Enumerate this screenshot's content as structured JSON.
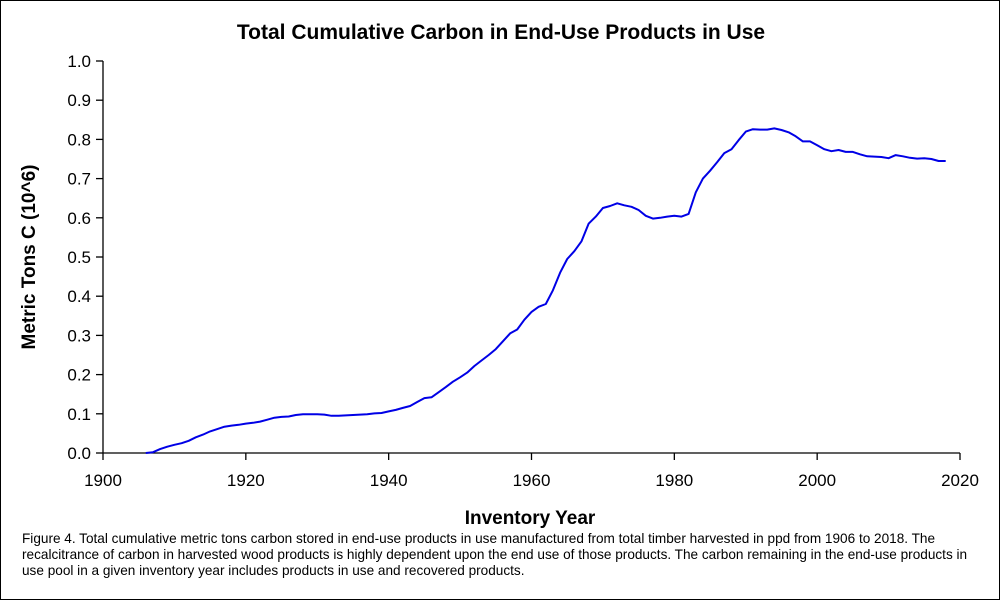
{
  "chart_data": {
    "type": "line",
    "title": "Total Cumulative Carbon in End-Use Products in Use",
    "xlabel": "Inventory Year",
    "ylabel": "Metric Tons C (10^6)",
    "xlim": [
      1900,
      2020
    ],
    "ylim": [
      0.0,
      1.0
    ],
    "xticks": [
      1900,
      1920,
      1940,
      1960,
      1980,
      2000,
      2020
    ],
    "yticks": [
      "0.0",
      "0.1",
      "0.2",
      "0.3",
      "0.4",
      "0.5",
      "0.6",
      "0.7",
      "0.8",
      "0.9",
      "1.0"
    ],
    "grid": false,
    "legend": "none",
    "series": [
      {
        "color": "#0000e6",
        "x": [
          1906,
          1907,
          1908,
          1909,
          1910,
          1911,
          1912,
          1913,
          1914,
          1915,
          1916,
          1917,
          1918,
          1919,
          1920,
          1921,
          1922,
          1923,
          1924,
          1925,
          1926,
          1927,
          1928,
          1929,
          1930,
          1931,
          1932,
          1933,
          1934,
          1935,
          1936,
          1937,
          1938,
          1939,
          1940,
          1941,
          1942,
          1943,
          1944,
          1945,
          1946,
          1947,
          1948,
          1949,
          1950,
          1951,
          1952,
          1953,
          1954,
          1955,
          1956,
          1957,
          1958,
          1959,
          1960,
          1961,
          1962,
          1963,
          1964,
          1965,
          1966,
          1967,
          1968,
          1969,
          1970,
          1971,
          1972,
          1973,
          1974,
          1975,
          1976,
          1977,
          1978,
          1979,
          1980,
          1981,
          1982,
          1983,
          1984,
          1985,
          1986,
          1987,
          1988,
          1989,
          1990,
          1991,
          1992,
          1993,
          1994,
          1995,
          1996,
          1997,
          1998,
          1999,
          2000,
          2001,
          2002,
          2003,
          2004,
          2005,
          2006,
          2007,
          2008,
          2009,
          2010,
          2011,
          2012,
          2013,
          2014,
          2015,
          2016,
          2017,
          2018
        ],
        "y": [
          0.0,
          0.002,
          0.01,
          0.016,
          0.021,
          0.025,
          0.031,
          0.04,
          0.047,
          0.055,
          0.061,
          0.067,
          0.07,
          0.072,
          0.075,
          0.077,
          0.08,
          0.085,
          0.09,
          0.092,
          0.093,
          0.097,
          0.099,
          0.099,
          0.099,
          0.098,
          0.095,
          0.095,
          0.096,
          0.097,
          0.098,
          0.099,
          0.101,
          0.102,
          0.106,
          0.11,
          0.115,
          0.12,
          0.13,
          0.14,
          0.142,
          0.155,
          0.168,
          0.182,
          0.193,
          0.205,
          0.222,
          0.236,
          0.25,
          0.265,
          0.285,
          0.305,
          0.315,
          0.34,
          0.36,
          0.373,
          0.38,
          0.415,
          0.46,
          0.495,
          0.515,
          0.54,
          0.585,
          0.603,
          0.625,
          0.63,
          0.637,
          0.632,
          0.628,
          0.62,
          0.605,
          0.598,
          0.6,
          0.603,
          0.605,
          0.603,
          0.61,
          0.665,
          0.7,
          0.72,
          0.742,
          0.765,
          0.775,
          0.798,
          0.82,
          0.826,
          0.825,
          0.825,
          0.828,
          0.824,
          0.818,
          0.808,
          0.795,
          0.795,
          0.785,
          0.775,
          0.77,
          0.773,
          0.768,
          0.768,
          0.762,
          0.757,
          0.756,
          0.755,
          0.752,
          0.76,
          0.757,
          0.753,
          0.751,
          0.752,
          0.75,
          0.745,
          0.745
        ]
      }
    ]
  },
  "caption": "Figure 4. Total cumulative metric tons carbon stored in end-use products in use manufactured from total timber harvested in ppd from 1906 to 2018. The recalcitrance of carbon in harvested wood products is highly dependent upon the end use of those products. The carbon remaining in the end-use products in use pool in a given inventory year includes products in use and recovered products."
}
